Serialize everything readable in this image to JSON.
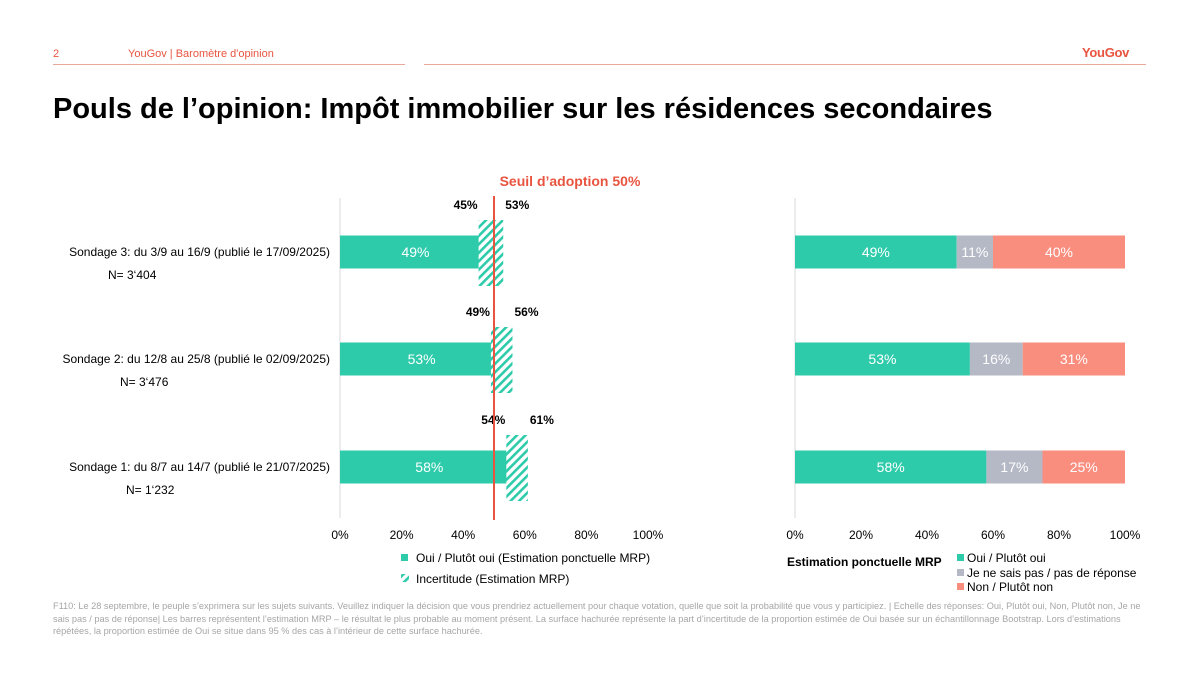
{
  "header": {
    "page_number": "2",
    "breadcrumb": "YouGov | Baromètre d'opinion",
    "logo_text": "YouGov"
  },
  "title": "Pouls de l’opinion: Impôt immobilier sur les résidences secondaires",
  "footnote": "F110: Le 28 septembre, le peuple s’exprimera sur les sujets suivants. Veuillez indiquer la décision que vous prendriez actuellement pour chaque votation, quelle que soit la probabilité que vous y participiez. | Echelle des réponses: Oui, Plutôt oui, Non, Plutôt non, Je ne sais pas / pas de réponse| Les barres représentent l’estimation MRP – le résultat le plus probable au moment présent. La surface hachurée représente la part d’incertitude de la proportion estimée de Oui basée sur un échantillonnage Bootstrap. Lors d’estimations répétées, la proportion estimée de Oui se situe dans 95 % des cas à l’intérieur de cette surface hachurée.",
  "colors": {
    "oui": "#2ecbab",
    "dont_know": "#b5b9c6",
    "non": "#f98d7e",
    "threshold": "#e8543f",
    "accent": "#e8543f"
  },
  "chart_data": [
    {
      "type": "bar",
      "orientation": "horizontal",
      "categories": [
        "Sondage 3: du 3/9 au 16/9 (publié le 17/09/2025)",
        "Sondage 2: du 12/8 au 25/8 (publié le 02/09/2025)",
        "Sondage 1: du 8/7 au 14/7 (publié le 21/07/2025)"
      ],
      "sample_sizes": [
        "N= 3‘404",
        "N= 3‘476",
        "N= 1‘232"
      ],
      "series": [
        {
          "name": "Oui / Plutôt oui (Estimation ponctuelle MRP)",
          "values": [
            49,
            53,
            58
          ],
          "labels": [
            "49%",
            "53%",
            "58%"
          ]
        }
      ],
      "uncertainty": {
        "name": "Incertitude (Estimation MRP)",
        "low": [
          45,
          49,
          54
        ],
        "high": [
          53,
          56,
          61
        ],
        "low_labels": [
          "45%",
          "49%",
          "54%"
        ],
        "high_labels": [
          "53%",
          "56%",
          "61%"
        ]
      },
      "threshold": {
        "value": 50,
        "label": "Seuil d’adoption 50%"
      },
      "xlim": [
        0,
        100
      ],
      "xticks": [
        "0%",
        "20%",
        "40%",
        "60%",
        "80%",
        "100%"
      ],
      "legend_position": "bottom"
    },
    {
      "type": "bar",
      "orientation": "horizontal",
      "stacked": true,
      "categories": [
        "Sondage 3",
        "Sondage 2",
        "Sondage 1"
      ],
      "series": [
        {
          "name": "Oui / Plutôt oui",
          "values": [
            49,
            53,
            58
          ],
          "labels": [
            "49%",
            "53%",
            "58%"
          ]
        },
        {
          "name": "Je ne sais pas / pas de réponse",
          "values": [
            11,
            16,
            17
          ],
          "labels": [
            "11%",
            "16%",
            "17%"
          ]
        },
        {
          "name": "Non / Plutôt non",
          "values": [
            40,
            31,
            25
          ],
          "labels": [
            "40%",
            "31%",
            "25%"
          ]
        }
      ],
      "xlim": [
        0,
        100
      ],
      "xticks": [
        "0%",
        "20%",
        "40%",
        "60%",
        "80%",
        "100%"
      ],
      "legend_title": "Estimation ponctuelle MRP",
      "legend_position": "bottom"
    }
  ]
}
